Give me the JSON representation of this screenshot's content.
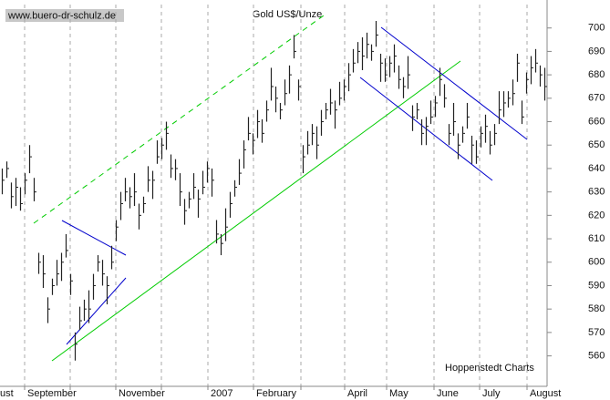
{
  "chart_data": {
    "type": "ohlc",
    "title": "Gold US$/Unze",
    "source": "www.buero-dr-schulz.de",
    "credit": "Hoppenstedt Charts",
    "color": "#222222",
    "x": [
      0,
      1,
      2,
      3,
      4,
      5,
      6,
      7,
      8,
      9,
      10,
      11,
      12,
      13,
      14,
      15,
      16,
      17,
      18,
      19,
      20,
      21,
      22,
      23,
      24,
      25,
      26,
      27,
      28,
      29,
      30,
      31,
      32,
      33,
      34,
      35,
      36,
      37,
      38,
      39,
      40,
      41,
      42,
      43,
      44,
      45,
      46,
      47,
      48,
      49,
      50,
      51,
      52,
      53,
      54,
      55,
      56,
      57,
      58,
      59,
      60,
      61,
      62,
      63,
      64,
      65,
      66,
      67,
      68,
      69,
      70,
      71,
      72,
      73,
      74,
      75,
      76,
      77,
      78,
      79,
      80,
      81,
      82,
      83,
      84,
      85,
      86,
      87,
      88,
      89,
      90,
      91,
      92,
      93,
      94,
      95,
      96,
      97,
      98,
      99,
      100,
      101,
      102,
      103,
      104,
      105,
      106,
      107,
      108,
      109,
      110,
      111,
      112,
      113,
      114,
      115,
      116,
      117,
      118,
      119
    ],
    "high": [
      640,
      643,
      634,
      636,
      632,
      638,
      650,
      636,
      604,
      603,
      585,
      593,
      601,
      604,
      612,
      595,
      570,
      581,
      584,
      588,
      595,
      603,
      601,
      594,
      607,
      618,
      630,
      636,
      632,
      638,
      625,
      628,
      641,
      639,
      652,
      653,
      660,
      646,
      644,
      638,
      627,
      630,
      638,
      631,
      639,
      643,
      640,
      618,
      612,
      623,
      630,
      635,
      644,
      652,
      662,
      655,
      665,
      661,
      669,
      683,
      675,
      668,
      678,
      684,
      697,
      678,
      650,
      656,
      659,
      658,
      665,
      668,
      674,
      669,
      677,
      678,
      685,
      691,
      694,
      696,
      698,
      693,
      703,
      689,
      687,
      688,
      693,
      684,
      679,
      688,
      667,
      668,
      661,
      662,
      669,
      671,
      683,
      676,
      659,
      668,
      655,
      658,
      668,
      654,
      652,
      658,
      663,
      656,
      659,
      673,
      673,
      673,
      678,
      689,
      669,
      681,
      688,
      691,
      684,
      683
    ],
    "low": [
      629,
      636,
      623,
      624,
      622,
      629,
      638,
      626,
      595,
      589,
      574,
      586,
      590,
      592,
      602,
      586,
      558,
      571,
      575,
      574,
      584,
      596,
      590,
      582,
      597,
      609,
      618,
      626,
      623,
      624,
      614,
      621,
      630,
      627,
      642,
      644,
      648,
      636,
      635,
      624,
      616,
      623,
      627,
      619,
      629,
      634,
      628,
      608,
      603,
      609,
      619,
      628,
      633,
      640,
      652,
      646,
      653,
      651,
      660,
      669,
      664,
      661,
      667,
      672,
      687,
      669,
      638,
      646,
      650,
      644,
      654,
      661,
      663,
      657,
      667,
      669,
      673,
      681,
      685,
      682,
      687,
      686,
      692,
      677,
      677,
      679,
      681,
      674,
      670,
      674,
      656,
      661,
      650,
      650,
      659,
      662,
      671,
      666,
      650,
      654,
      644,
      651,
      657,
      642,
      642,
      649,
      651,
      646,
      650,
      659,
      662,
      666,
      667,
      677,
      659,
      672,
      676,
      681,
      675,
      669
    ],
    "close": [
      635,
      640,
      628,
      632,
      625,
      635,
      645,
      630,
      600,
      595,
      580,
      590,
      595,
      600,
      605,
      592,
      565,
      575,
      580,
      580,
      590,
      600,
      595,
      590,
      600,
      615,
      625,
      630,
      628,
      630,
      620,
      625,
      635,
      635,
      645,
      650,
      655,
      640,
      640,
      630,
      622,
      627,
      632,
      627,
      632,
      640,
      635,
      612,
      608,
      615,
      625,
      632,
      638,
      648,
      655,
      652,
      660,
      655,
      665,
      675,
      670,
      665,
      672,
      680,
      690,
      675,
      645,
      650,
      655,
      650,
      660,
      665,
      668,
      665,
      670,
      675,
      680,
      685,
      690,
      688,
      693,
      690,
      697,
      685,
      680,
      685,
      688,
      678,
      675,
      680,
      662,
      665,
      655,
      658,
      662,
      668,
      678,
      670,
      655,
      660,
      650,
      655,
      662,
      650,
      645,
      655,
      658,
      650,
      655,
      665,
      668,
      670,
      672,
      685,
      662,
      678,
      683,
      685,
      680,
      675
    ],
    "xlim": [
      -0.5,
      119.5
    ],
    "ylim": [
      547,
      710
    ],
    "xticks": [
      {
        "value": -1.1,
        "label": "ust"
      },
      {
        "value": 4.9,
        "label": "September"
      },
      {
        "value": 14.9,
        "label": null
      },
      {
        "value": 24.9,
        "label": "November"
      },
      {
        "value": 34.9,
        "label": null
      },
      {
        "value": 45.1,
        "label": "2007"
      },
      {
        "value": 55.1,
        "label": "February"
      },
      {
        "value": 65.5,
        "label": null
      },
      {
        "value": 75.1,
        "label": "April"
      },
      {
        "value": 84.3,
        "label": "May"
      },
      {
        "value": 94.7,
        "label": "June"
      },
      {
        "value": 104.7,
        "label": "July"
      },
      {
        "value": 115.1,
        "label": "August"
      }
    ],
    "yticks": [
      560,
      570,
      580,
      590,
      600,
      610,
      620,
      630,
      640,
      650,
      660,
      670,
      680,
      690,
      700
    ],
    "grid": true
  }
}
